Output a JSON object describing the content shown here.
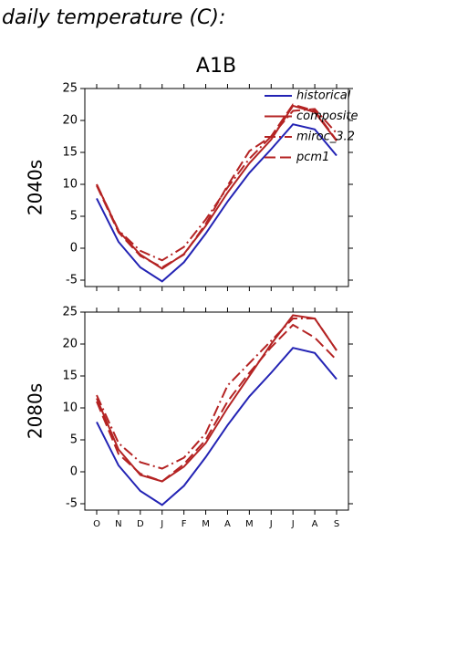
{
  "title": "daily temperature (C):",
  "subtitle": "A1B",
  "chart_data": [
    {
      "type": "line",
      "y_label": "2040s",
      "ylim": [
        -6,
        25
      ],
      "yticks": [
        -5,
        0,
        5,
        10,
        15,
        20,
        25
      ],
      "legend": "upper right",
      "series": [
        {
          "name": "historical",
          "color": "#2323b4",
          "style": "solid",
          "values": [
            7.8,
            1,
            -3,
            -5.2,
            -2.2,
            2.3,
            7.3,
            11.8,
            15.5,
            19.4,
            18.6,
            14.5
          ]
        },
        {
          "name": "composite",
          "color": "#b42323",
          "style": "solid",
          "values": [
            10,
            2.7,
            -1,
            -3.2,
            -0.9,
            3.5,
            8.7,
            13.3,
            17,
            22.3,
            21.3,
            16.8
          ]
        },
        {
          "name": "miroc_3.2",
          "color": "#b42323",
          "style": "dashdot",
          "values": [
            10,
            2.8,
            -0.4,
            -1.9,
            0.2,
            4.5,
            9.5,
            14,
            17.5,
            21.5,
            21.8,
            18
          ]
        },
        {
          "name": "pcm1",
          "color": "#b42323",
          "style": "dashed",
          "values": [
            9.8,
            2.5,
            -1.2,
            -3,
            -1,
            3.8,
            9.8,
            15.2,
            17.5,
            22.5,
            21.5,
            16.9
          ]
        }
      ]
    },
    {
      "type": "line",
      "y_label": "2080s",
      "ylim": [
        -6,
        25
      ],
      "yticks": [
        -5,
        0,
        5,
        10,
        15,
        20,
        25
      ],
      "categories": [
        "O",
        "N",
        "D",
        "J",
        "F",
        "M",
        "A",
        "M",
        "J",
        "J",
        "A",
        "S"
      ],
      "series": [
        {
          "color": "#2323b4",
          "style": "solid",
          "values": [
            7.8,
            1,
            -3,
            -5.2,
            -2.2,
            2.3,
            7.3,
            11.8,
            15.5,
            19.4,
            18.6,
            14.5
          ]
        },
        {
          "color": "#b42323",
          "style": "solid",
          "values": [
            11.5,
            3.5,
            -0.5,
            -1.5,
            0.8,
            4.5,
            10,
            15,
            20,
            24.5,
            24,
            19
          ]
        },
        {
          "color": "#b42323",
          "style": "dashdot",
          "values": [
            12,
            4.5,
            1.5,
            0.5,
            2.2,
            6,
            13.5,
            17,
            20.5,
            24,
            24,
            19
          ]
        },
        {
          "color": "#b42323",
          "style": "dashed",
          "values": [
            11,
            2.8,
            -0.3,
            -1.5,
            1.2,
            5,
            11,
            15.5,
            19.5,
            23,
            21,
            17.5
          ]
        }
      ]
    }
  ]
}
